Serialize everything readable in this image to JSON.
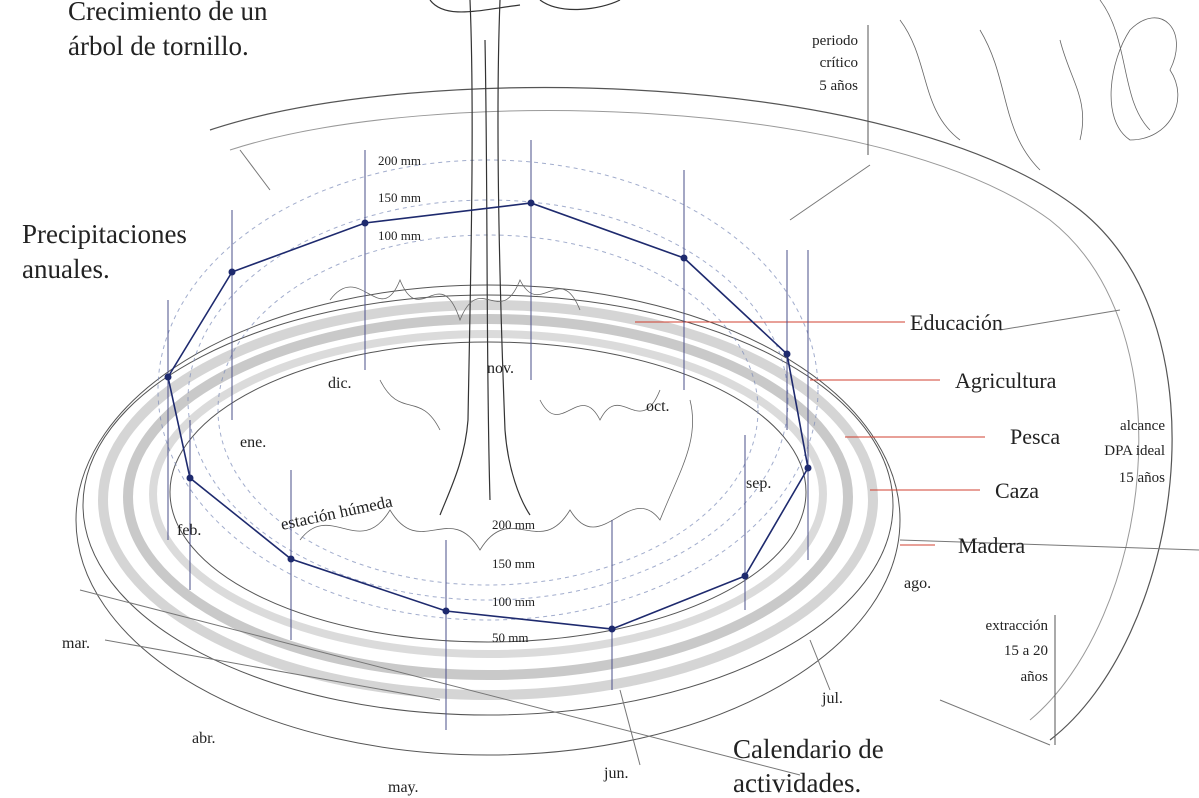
{
  "titles": {
    "tree": [
      "Crecimiento de un",
      "árbol de tornillo."
    ],
    "rain": [
      "Precipitaciones",
      "anuales."
    ],
    "calendar": [
      "Calendario de",
      "actividades."
    ]
  },
  "notes": [
    [
      "periodo",
      "crítico",
      "5 años"
    ],
    [
      "alcance",
      "DPA ideal",
      "15 años"
    ],
    [
      "extracción",
      "15 a 20",
      "años"
    ]
  ],
  "activities": [
    "Educación",
    "Agricultura",
    "Pesca",
    "Caza",
    "Madera"
  ],
  "months": [
    "ene.",
    "feb.",
    "mar.",
    "abr.",
    "may.",
    "jun.",
    "jul.",
    "ago.",
    "sep.",
    "oct.",
    "nov.",
    "dic."
  ],
  "scale_top": [
    "200 mm",
    "150 mm",
    "100 mm"
  ],
  "scale_bottom": [
    "200 mm",
    "150 mm",
    "100 mm",
    "50 mm"
  ],
  "season": "estación húmeda"
}
